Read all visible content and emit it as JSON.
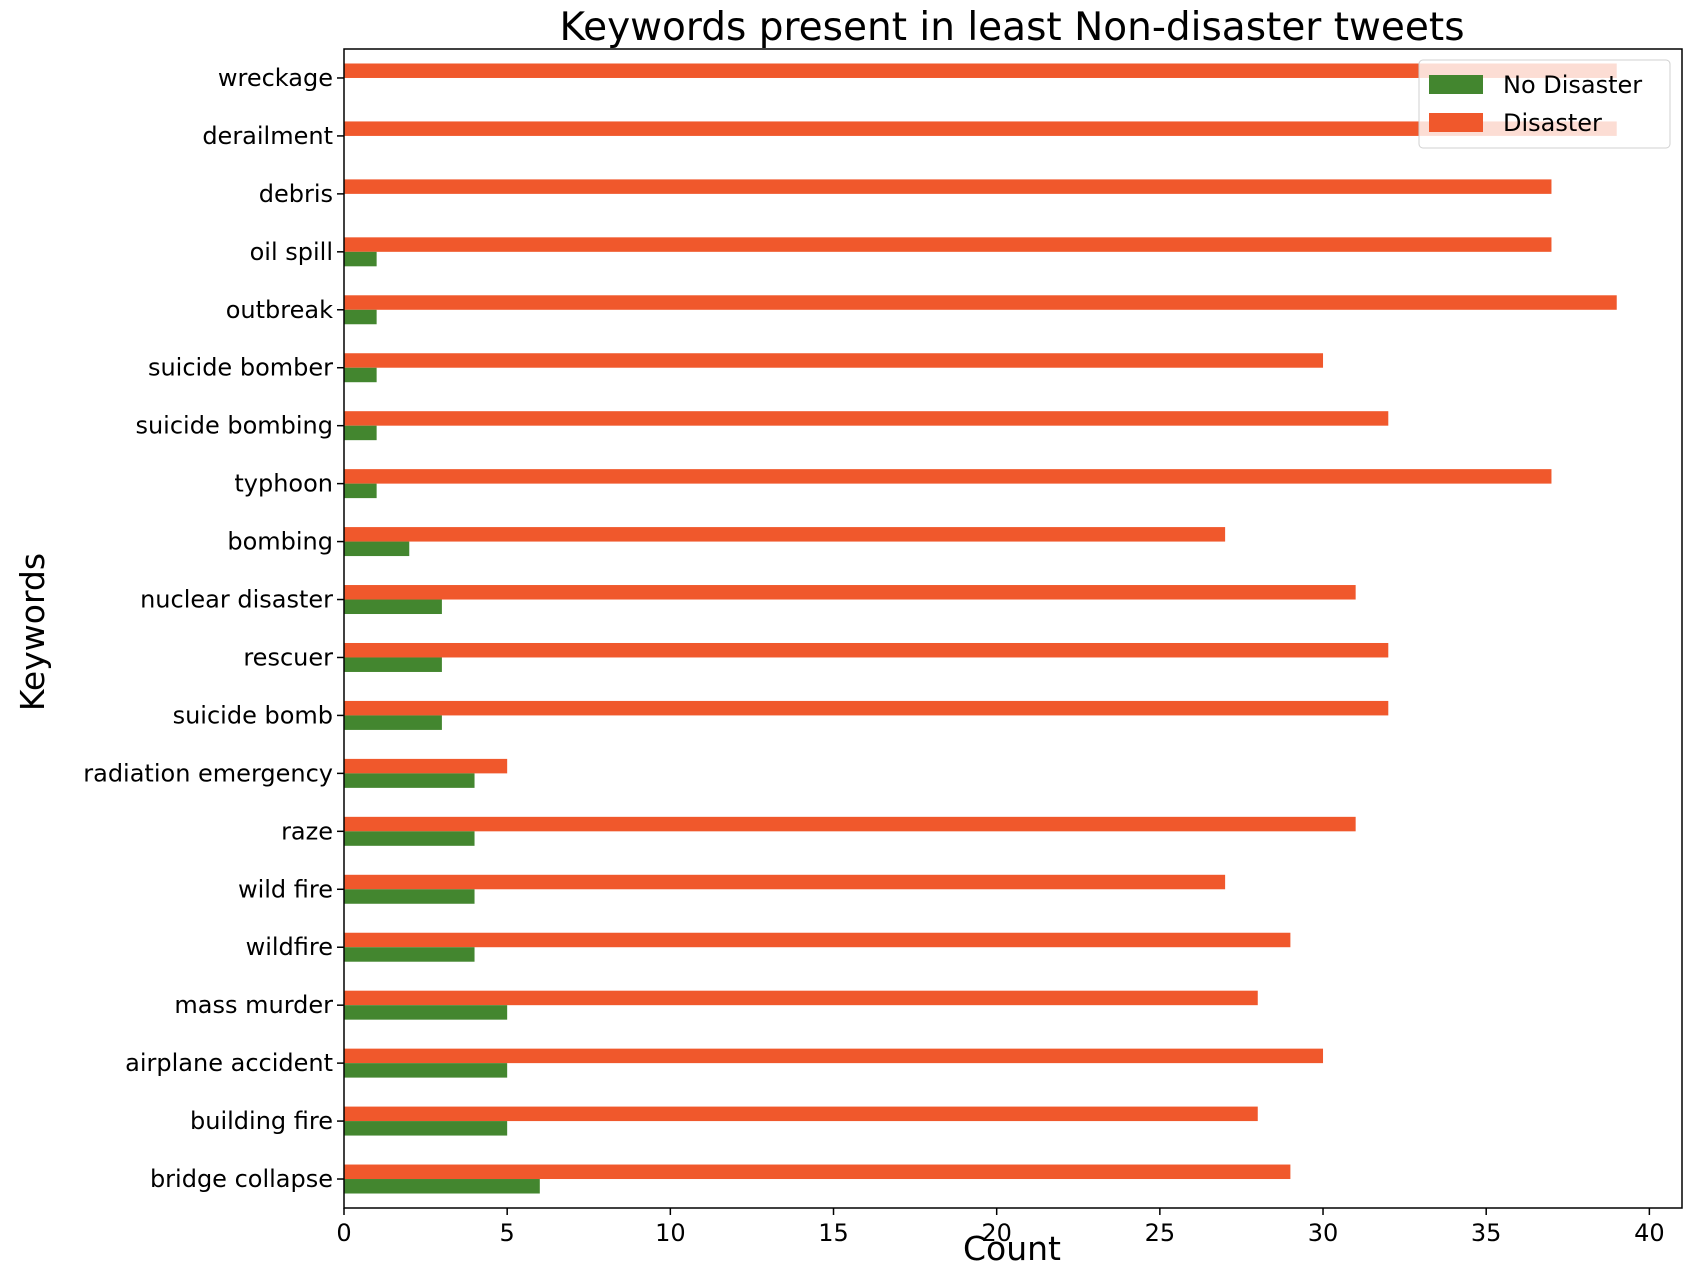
{
  "chart_data": {
    "type": "bar",
    "orientation": "horizontal",
    "title": "Keywords present in least Non-disaster tweets",
    "xlabel": "Count",
    "ylabel": "Keywords",
    "xlim": [
      0,
      41
    ],
    "xticks": [
      0,
      5,
      10,
      15,
      20,
      25,
      30,
      35,
      40
    ],
    "grid": false,
    "legend_position": "top-right",
    "categories": [
      "wreckage",
      "derailment",
      "debris",
      "oil spill",
      "outbreak",
      "suicide bomber",
      "suicide bombing",
      "typhoon",
      "bombing",
      "nuclear disaster",
      "rescuer",
      "suicide bomb",
      "radiation emergency",
      "raze",
      "wild fire",
      "wildfire",
      "mass murder",
      "airplane accident",
      "building fire",
      "bridge collapse"
    ],
    "series": [
      {
        "name": "No Disaster",
        "color": "#43862f",
        "values": [
          0,
          0,
          0,
          1,
          1,
          1,
          1,
          1,
          2,
          3,
          3,
          3,
          4,
          4,
          4,
          4,
          5,
          5,
          5,
          6
        ]
      },
      {
        "name": "Disaster",
        "color": "#f0582c",
        "values": [
          39,
          39,
          37,
          37,
          39,
          30,
          32,
          37,
          27,
          31,
          32,
          32,
          5,
          31,
          27,
          29,
          28,
          30,
          28,
          29
        ]
      }
    ]
  }
}
